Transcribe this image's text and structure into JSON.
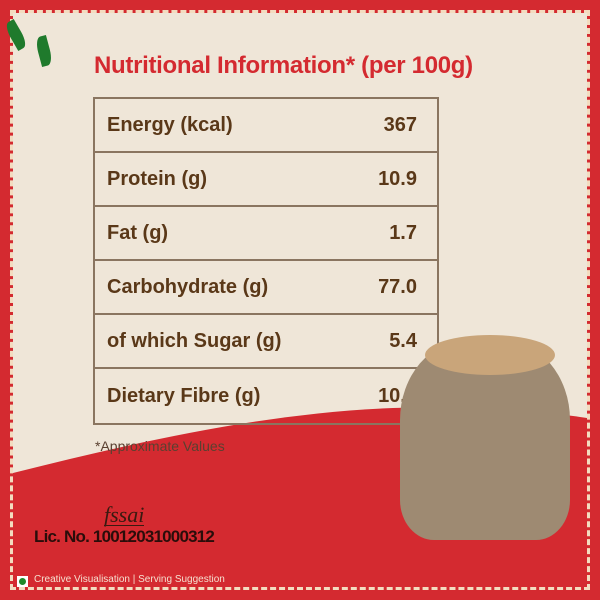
{
  "title": "Nutritional Information* (per 100g)",
  "rows": [
    {
      "label": "Energy (kcal)",
      "value": "367"
    },
    {
      "label": "Protein (g)",
      "value": "10.9"
    },
    {
      "label": "Fat (g)",
      "value": "1.7"
    },
    {
      "label": "Carbohydrate (g)",
      "value": "77.0"
    },
    {
      "label": "of which Sugar (g)",
      "value": "5.4"
    },
    {
      "label": "Dietary Fibre (g)",
      "value": "10.5"
    }
  ],
  "note": "*Approximate Values",
  "fssai_logo": "fssai",
  "license": "Lic. No. 10012031000312",
  "disclaimer": "Creative Visualisation | Serving Suggestion",
  "colors": {
    "accent": "#d42a30",
    "background": "#efe6d8",
    "text": "#5a3818",
    "veg_mark": "#1e8a2a"
  }
}
